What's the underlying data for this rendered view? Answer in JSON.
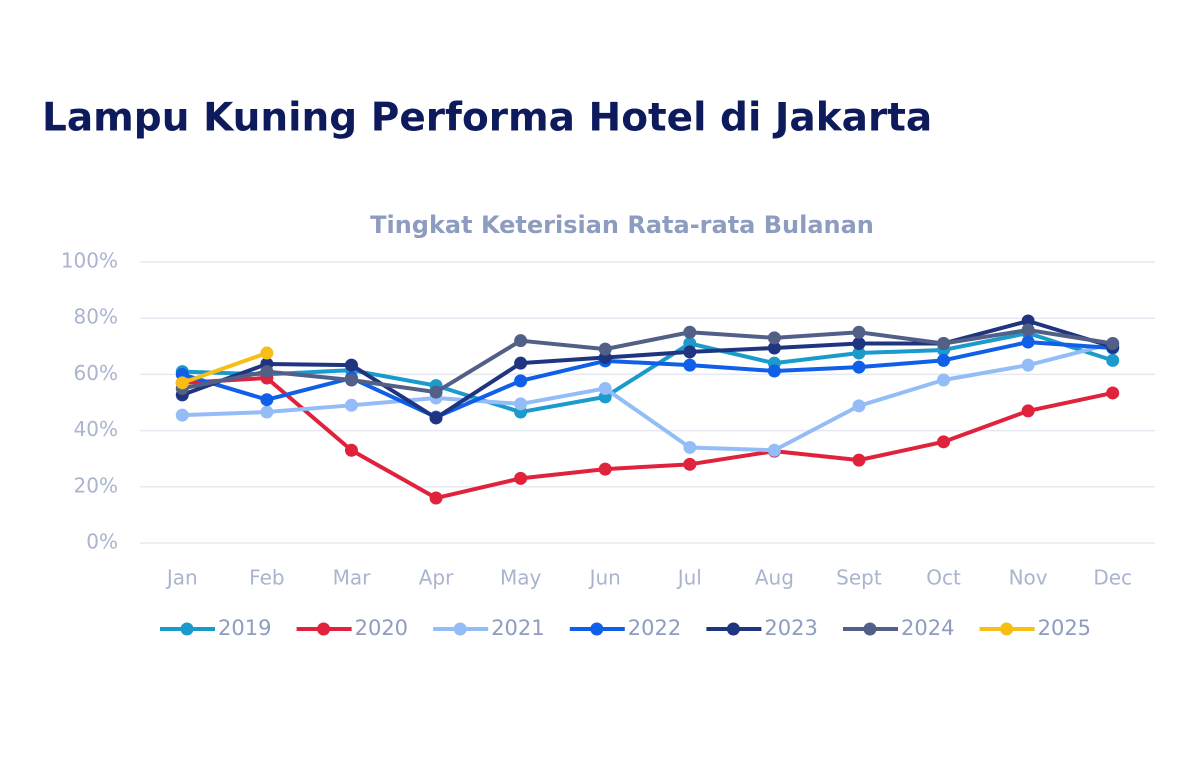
{
  "chart_data": {
    "type": "line",
    "title": "Lampu Kuning Performa Hotel di Jakarta",
    "subtitle": "Tingkat Keterisian Rata-rata Bulanan",
    "categories": [
      "Jan",
      "Feb",
      "Mar",
      "Apr",
      "May",
      "Jun",
      "Jul",
      "Aug",
      "Sept",
      "Oct",
      "Nov",
      "Dec"
    ],
    "ylim": [
      0,
      100
    ],
    "yticks": [
      {
        "value": 0,
        "label": "0%"
      },
      {
        "value": 20,
        "label": "20%"
      },
      {
        "value": 40,
        "label": "40%"
      },
      {
        "value": 60,
        "label": "60%"
      },
      {
        "value": 80,
        "label": "80%"
      },
      {
        "value": 100,
        "label": "100%"
      }
    ],
    "grid": true,
    "legend": "bottom",
    "series": [
      {
        "name": "2019",
        "color": "#1a9bcc",
        "values": [
          61,
          60,
          61.5,
          56,
          46.6,
          52,
          71,
          64,
          67.6,
          68.7,
          74.7,
          65
        ]
      },
      {
        "name": "2020",
        "color": "#e0223c",
        "values": [
          57,
          58.7,
          33,
          16,
          23,
          26.3,
          28,
          32.7,
          29.5,
          36,
          47,
          53.4
        ]
      },
      {
        "name": "2021",
        "color": "#94bdf7",
        "values": [
          45.5,
          46.6,
          49,
          51.6,
          49.5,
          55,
          34,
          33,
          48.8,
          58,
          63.3,
          71
        ]
      },
      {
        "name": "2022",
        "color": "#0f5fe8",
        "values": [
          60,
          51,
          58.7,
          44.8,
          57.7,
          64.8,
          63.3,
          61.2,
          62.6,
          65,
          71.5,
          69.4
        ]
      },
      {
        "name": "2023",
        "color": "#1f3580",
        "values": [
          52.7,
          63.7,
          63.3,
          44.5,
          64,
          66,
          68,
          69.4,
          71,
          71,
          79,
          69.8
        ]
      },
      {
        "name": "2024",
        "color": "#525f86",
        "values": [
          55,
          61,
          58,
          53.7,
          72,
          69,
          75,
          73,
          75,
          71,
          75.8,
          71
        ]
      },
      {
        "name": "2025",
        "color": "#f7bf16",
        "values": [
          57,
          67.6,
          null,
          null,
          null,
          null,
          null,
          null,
          null,
          null,
          null,
          null
        ]
      }
    ]
  }
}
